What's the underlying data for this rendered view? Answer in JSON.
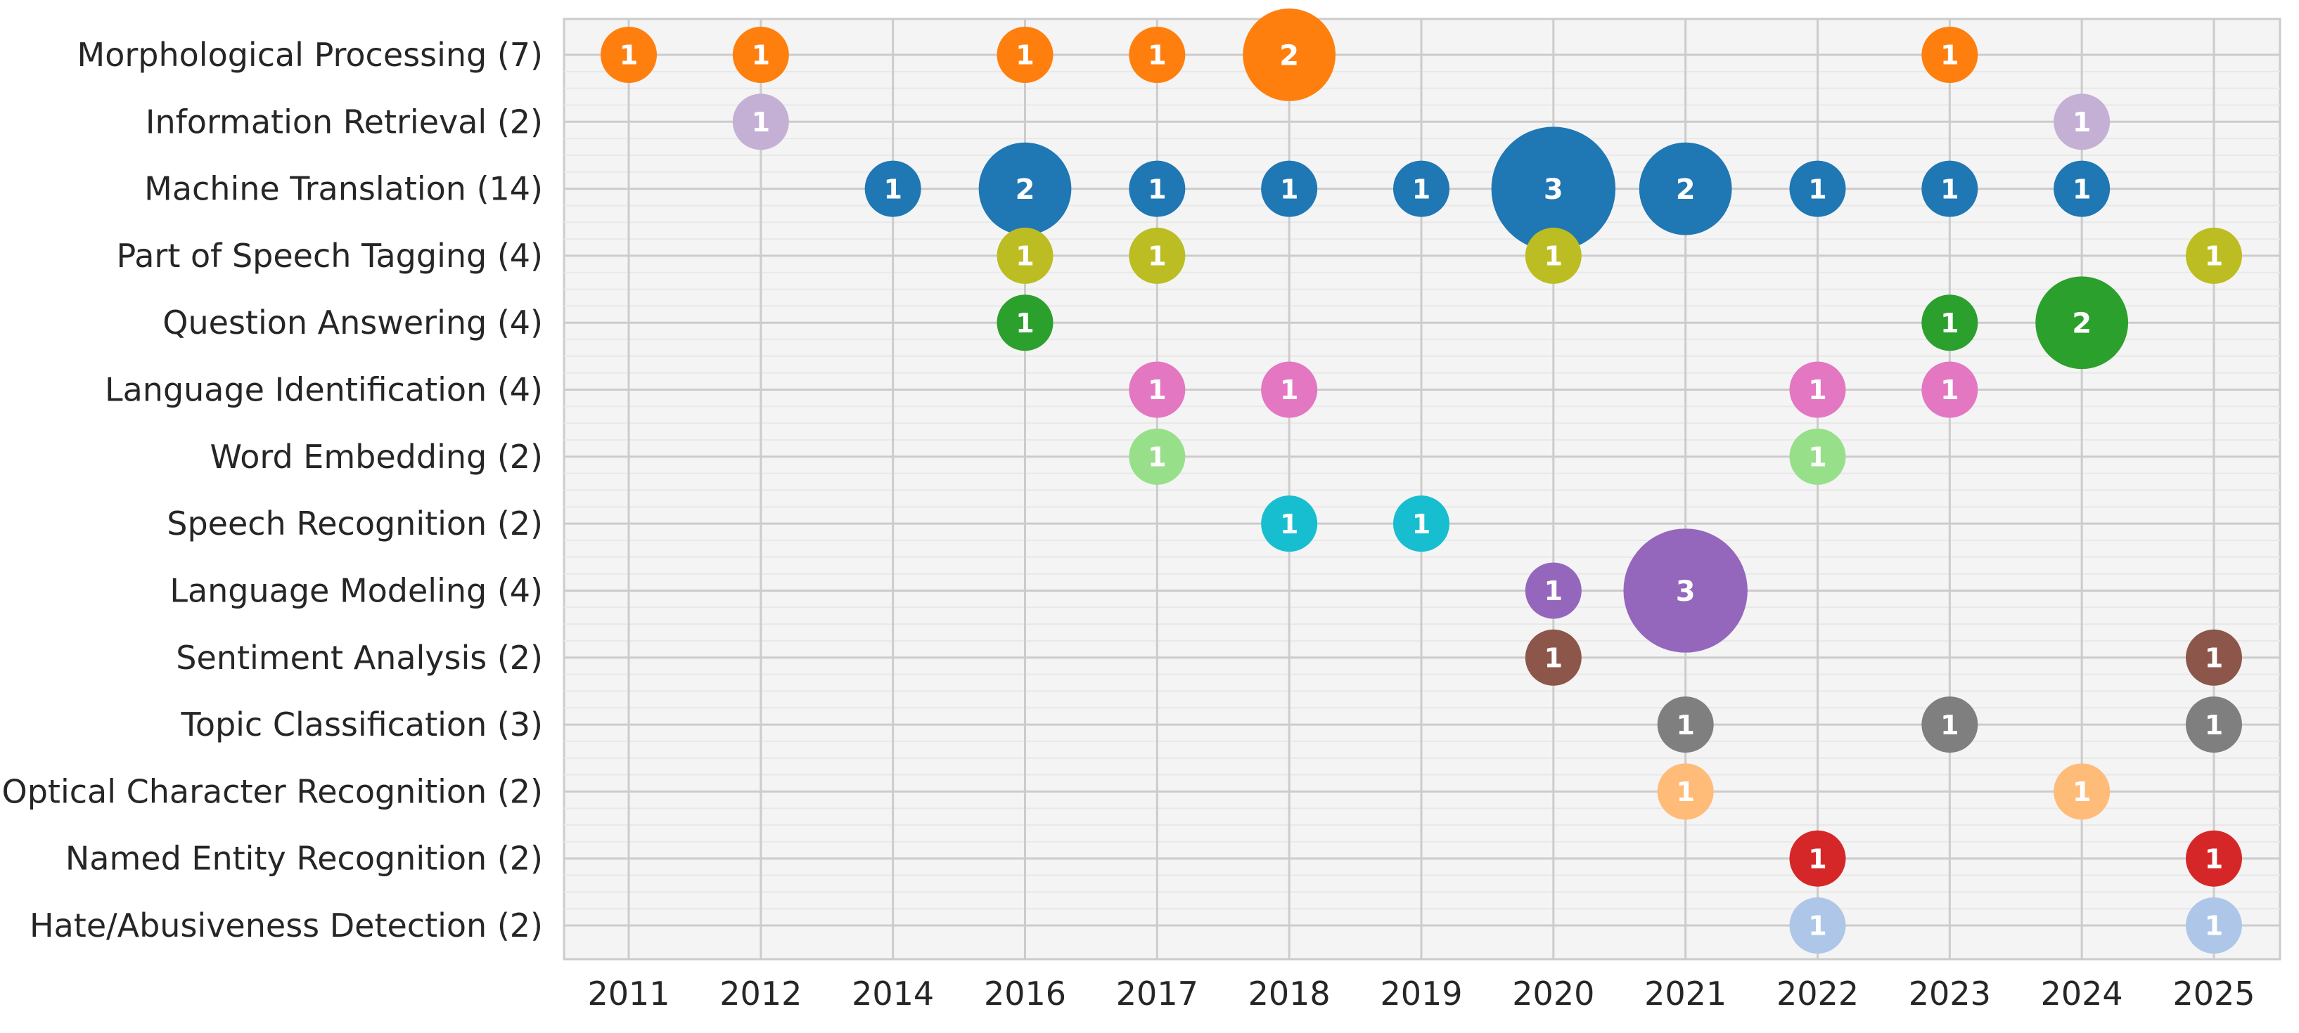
{
  "chart_data": {
    "type": "scatter",
    "subtype": "bubble",
    "title": "",
    "xlabel": "",
    "ylabel": "",
    "grid": true,
    "legend": "none",
    "x": [
      "2011",
      "2012",
      "2014",
      "2016",
      "2017",
      "2018",
      "2019",
      "2020",
      "2021",
      "2022",
      "2023",
      "2024",
      "2025"
    ],
    "categories": [
      "Morphological Processing (7)",
      "Information Retrieval (2)",
      "Machine Translation (14)",
      "Part of Speech Tagging (4)",
      "Question Answering (4)",
      "Language Identification (4)",
      "Word Embedding (2)",
      "Speech Recognition (2)",
      "Language Modeling (4)",
      "Sentiment Analysis (2)",
      "Topic Classification (3)",
      "Optical Character Recognition (2)",
      "Named Entity Recognition (2)",
      "Hate/Abusiveness Detection (2)"
    ],
    "series": [
      {
        "category": "Morphological Processing (7)",
        "color": "#ff7f0e",
        "points": [
          {
            "x": "2011",
            "value": 1
          },
          {
            "x": "2012",
            "value": 1
          },
          {
            "x": "2016",
            "value": 1
          },
          {
            "x": "2017",
            "value": 1
          },
          {
            "x": "2018",
            "value": 2
          },
          {
            "x": "2023",
            "value": 1
          }
        ]
      },
      {
        "category": "Information Retrieval (2)",
        "color": "#c5b0d5",
        "points": [
          {
            "x": "2012",
            "value": 1
          },
          {
            "x": "2024",
            "value": 1
          }
        ]
      },
      {
        "category": "Machine Translation (14)",
        "color": "#1f77b4",
        "points": [
          {
            "x": "2014",
            "value": 1
          },
          {
            "x": "2016",
            "value": 2
          },
          {
            "x": "2017",
            "value": 1
          },
          {
            "x": "2018",
            "value": 1
          },
          {
            "x": "2019",
            "value": 1
          },
          {
            "x": "2020",
            "value": 3
          },
          {
            "x": "2021",
            "value": 2
          },
          {
            "x": "2022",
            "value": 1
          },
          {
            "x": "2023",
            "value": 1
          },
          {
            "x": "2024",
            "value": 1
          }
        ]
      },
      {
        "category": "Part of Speech Tagging (4)",
        "color": "#bcbd22",
        "points": [
          {
            "x": "2016",
            "value": 1
          },
          {
            "x": "2017",
            "value": 1
          },
          {
            "x": "2020",
            "value": 1
          },
          {
            "x": "2025",
            "value": 1
          }
        ]
      },
      {
        "category": "Question Answering (4)",
        "color": "#2ca02c",
        "points": [
          {
            "x": "2016",
            "value": 1
          },
          {
            "x": "2023",
            "value": 1
          },
          {
            "x": "2024",
            "value": 2
          }
        ]
      },
      {
        "category": "Language Identification (4)",
        "color": "#e377c2",
        "points": [
          {
            "x": "2017",
            "value": 1
          },
          {
            "x": "2018",
            "value": 1
          },
          {
            "x": "2022",
            "value": 1
          },
          {
            "x": "2023",
            "value": 1
          }
        ]
      },
      {
        "category": "Word Embedding (2)",
        "color": "#98df8a",
        "points": [
          {
            "x": "2017",
            "value": 1
          },
          {
            "x": "2022",
            "value": 1
          }
        ]
      },
      {
        "category": "Speech Recognition (2)",
        "color": "#17becf",
        "points": [
          {
            "x": "2018",
            "value": 1
          },
          {
            "x": "2019",
            "value": 1
          }
        ]
      },
      {
        "category": "Language Modeling (4)",
        "color": "#9467bd",
        "points": [
          {
            "x": "2020",
            "value": 1
          },
          {
            "x": "2021",
            "value": 3
          }
        ]
      },
      {
        "category": "Sentiment Analysis (2)",
        "color": "#8c564b",
        "points": [
          {
            "x": "2020",
            "value": 1
          },
          {
            "x": "2025",
            "value": 1
          }
        ]
      },
      {
        "category": "Topic Classification (3)",
        "color": "#7f7f7f",
        "points": [
          {
            "x": "2021",
            "value": 1
          },
          {
            "x": "2023",
            "value": 1
          },
          {
            "x": "2025",
            "value": 1
          }
        ]
      },
      {
        "category": "Optical Character Recognition (2)",
        "color": "#ffbb78",
        "points": [
          {
            "x": "2021",
            "value": 1
          },
          {
            "x": "2024",
            "value": 1
          }
        ]
      },
      {
        "category": "Named Entity Recognition (2)",
        "color": "#d62728",
        "points": [
          {
            "x": "2022",
            "value": 1
          },
          {
            "x": "2025",
            "value": 1
          }
        ]
      },
      {
        "category": "Hate/Abusiveness Detection (2)",
        "color": "#aec7e8",
        "points": [
          {
            "x": "2022",
            "value": 1
          },
          {
            "x": "2025",
            "value": 1
          }
        ]
      }
    ]
  }
}
